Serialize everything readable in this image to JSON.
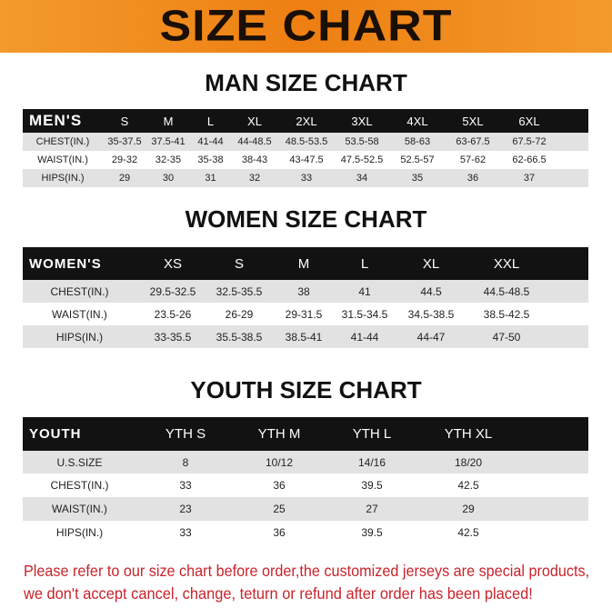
{
  "banner": {
    "title": "SIZE CHART"
  },
  "men": {
    "title": "MAN SIZE CHART",
    "header": [
      "MEN'S",
      "S",
      "M",
      "L",
      "XL",
      "2XL",
      "3XL",
      "4XL",
      "5XL",
      "6XL"
    ],
    "rows": [
      [
        "CHEST(IN.)",
        "35-37.5",
        "37.5-41",
        "41-44",
        "44-48.5",
        "48.5-53.5",
        "53.5-58",
        "58-63",
        "63-67.5",
        "67.5-72"
      ],
      [
        "WAIST(IN.)",
        "29-32",
        "32-35",
        "35-38",
        "38-43",
        "43-47.5",
        "47.5-52.5",
        "52.5-57",
        "57-62",
        "62-66.5"
      ],
      [
        "HIPS(IN.)",
        "29",
        "30",
        "31",
        "32",
        "33",
        "34",
        "35",
        "36",
        "37"
      ]
    ]
  },
  "women": {
    "title": "WOMEN SIZE CHART",
    "header": [
      "WOMEN'S",
      "XS",
      "S",
      "M",
      "L",
      "XL",
      "XXL"
    ],
    "rows": [
      [
        "CHEST(IN.)",
        "29.5-32.5",
        "32.5-35.5",
        "38",
        "41",
        "44.5",
        "44.5-48.5"
      ],
      [
        "WAIST(IN.)",
        "23.5-26",
        "26-29",
        "29-31.5",
        "31.5-34.5",
        "34.5-38.5",
        "38.5-42.5"
      ],
      [
        "HIPS(IN.)",
        "33-35.5",
        "35.5-38.5",
        "38.5-41",
        "41-44",
        "44-47",
        "47-50"
      ]
    ]
  },
  "youth": {
    "title": "YOUTH SIZE CHART",
    "header": [
      "YOUTH",
      "YTH S",
      "YTH M",
      "YTH L",
      "YTH XL"
    ],
    "rows": [
      [
        "U.S.SIZE",
        "8",
        "10/12",
        "14/16",
        "18/20"
      ],
      [
        "CHEST(IN.)",
        "33",
        "36",
        "39.5",
        "42.5"
      ],
      [
        "WAIST(IN.)",
        "23",
        "25",
        "27",
        "29"
      ],
      [
        "HIPS(IN.)",
        "33",
        "36",
        "39.5",
        "42.5"
      ]
    ]
  },
  "notice": {
    "line1": "Please refer to our size chart before order,the customized jerseys are special products,",
    "line2": "we don't accept cancel, change, teturn or refund after order has been placed!"
  },
  "colors": {
    "banner": "#ee7f12",
    "header_bg": "#121212",
    "row_gray": "#e2e2e2",
    "notice": "#c8232b"
  }
}
